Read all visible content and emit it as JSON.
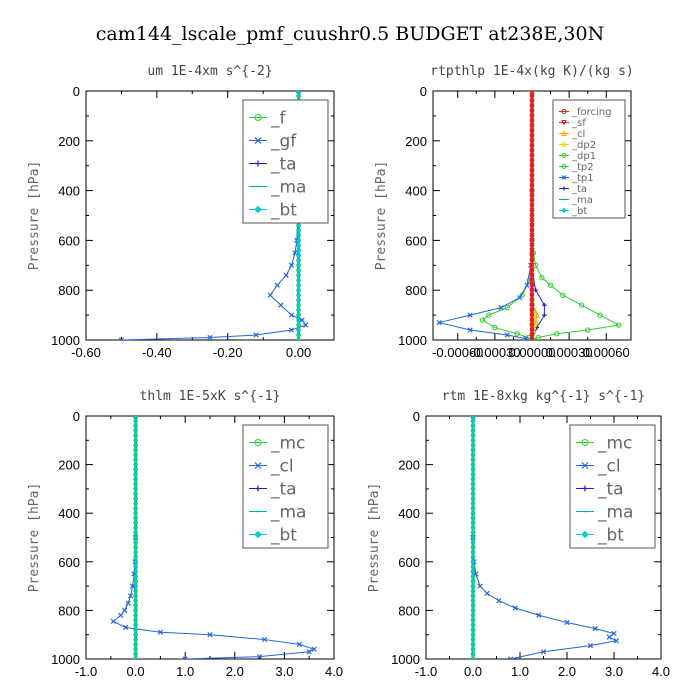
{
  "title": "cam144_lscale_pmf_cuushr0.5  BUDGET at238E,30N",
  "colors": {
    "green": "#33cc33",
    "red": "#dd2222",
    "blue": "#2266dd",
    "cyan": "#00cccc",
    "orange": "#ffaa00",
    "yellow": "#dddd00",
    "darkblue": "#2222cc",
    "axis": "#000000"
  },
  "chart_data": [
    {
      "type": "line",
      "title": "um   1E-4xm  s^{-2}",
      "ylabel": "Pressure [hPa]",
      "xlabel": "",
      "xlim": [
        -0.6,
        0.1
      ],
      "ylim": [
        1000,
        0
      ],
      "xticks": [
        -0.6,
        -0.4,
        -0.2,
        0.0
      ],
      "xtick_labels": [
        "-0.60",
        "-0.40",
        "-0.20",
        "0.00"
      ],
      "yticks": [
        0,
        200,
        400,
        600,
        800,
        1000
      ],
      "ytick_labels": [
        "0",
        "200",
        "400",
        "600",
        "800",
        "1000"
      ],
      "legend": {
        "position": "top-right",
        "entries": [
          {
            "label": "_f",
            "color": "#33cc33",
            "marker": "o"
          },
          {
            "label": "_gf",
            "color": "#2266dd",
            "marker": "x"
          },
          {
            "label": "_ta",
            "color": "#2222cc",
            "marker": "+"
          },
          {
            "label": "_ma",
            "color": "#00aaaa",
            "marker": "-"
          },
          {
            "label": "_bt",
            "color": "#00cccc",
            "marker": "D"
          }
        ]
      },
      "series": [
        {
          "name": "_f",
          "color": "#33cc33",
          "x": [
            0.0,
            0.0,
            0.0,
            0.0,
            0.0,
            0.0,
            0.0,
            0.0,
            0.0,
            0.0,
            0.0
          ],
          "y": [
            0,
            100,
            200,
            300,
            400,
            500,
            600,
            700,
            800,
            900,
            1000
          ]
        },
        {
          "name": "_gf",
          "color": "#2266dd",
          "x": [
            0.0,
            0.0,
            0.0,
            -0.002,
            -0.005,
            -0.01,
            -0.02,
            -0.035,
            -0.06,
            -0.08,
            -0.05,
            -0.02,
            0.01,
            0.02,
            -0.02,
            -0.12,
            -0.25,
            -0.5
          ],
          "y": [
            0,
            200,
            400,
            500,
            600,
            650,
            700,
            740,
            780,
            820,
            860,
            900,
            920,
            940,
            960,
            980,
            990,
            1000
          ]
        },
        {
          "name": "_ta",
          "color": "#2222cc",
          "x": [
            0.0,
            0.0,
            0.0,
            0.0,
            0.0,
            0.0
          ],
          "y": [
            0,
            200,
            400,
            600,
            800,
            1000
          ]
        },
        {
          "name": "_ma",
          "color": "#00aaaa",
          "x": [
            0.0,
            0.0,
            0.0,
            0.0,
            0.0,
            0.0
          ],
          "y": [
            0,
            200,
            400,
            600,
            800,
            1000
          ]
        },
        {
          "name": "_bt",
          "color": "#00cccc",
          "x": [
            0.0,
            0.0,
            0.0,
            0.0,
            0.0,
            0.0
          ],
          "y": [
            0,
            200,
            400,
            600,
            800,
            1000
          ]
        }
      ]
    },
    {
      "type": "line",
      "title": "rtpthlp   1E-4x(kg K)/(kg s)",
      "ylabel": "Pressure [hPa]",
      "xlabel": "",
      "xlim": [
        -0.0008,
        0.0008
      ],
      "ylim": [
        1000,
        0
      ],
      "xticks": [
        -0.0006,
        -0.0003,
        0.0,
        0.0003,
        0.0006
      ],
      "xtick_labels": [
        "-0.00060",
        "-0.00030",
        "0.00000",
        "0.00030",
        "0.00060"
      ],
      "yticks": [
        0,
        200,
        400,
        600,
        800,
        1000
      ],
      "ytick_labels": [
        "0",
        "200",
        "400",
        "600",
        "800",
        "1000"
      ],
      "legend": {
        "position": "top-right",
        "entries": [
          {
            "label": "_forcing",
            "color": "#dd2222",
            "marker": "o"
          },
          {
            "label": "_sf",
            "color": "#dd2222",
            "marker": "v"
          },
          {
            "label": "_cl",
            "color": "#ffaa00",
            "marker": "^"
          },
          {
            "label": "_dp2",
            "color": "#dddd00",
            "marker": "o"
          },
          {
            "label": "_dp1",
            "color": "#33cc33",
            "marker": "o"
          },
          {
            "label": "_tp2",
            "color": "#33cc33",
            "marker": "o"
          },
          {
            "label": "_tp1",
            "color": "#2266dd",
            "marker": "x"
          },
          {
            "label": "_ta",
            "color": "#2222cc",
            "marker": "+"
          },
          {
            "label": "_ma",
            "color": "#00aaaa",
            "marker": "-"
          },
          {
            "label": "_bt",
            "color": "#00cccc",
            "marker": "D"
          }
        ]
      },
      "series": [
        {
          "name": "_dp1",
          "color": "#33cc33",
          "x": [
            0.0,
            0.0,
            0.0,
            1e-05,
            3e-05,
            8e-05,
            0.00015,
            0.00025,
            0.0004,
            0.00055,
            0.0007,
            0.00045,
            0.0002,
            5e-05,
            0.0
          ],
          "y": [
            0,
            400,
            600,
            650,
            700,
            750,
            780,
            820,
            860,
            900,
            940,
            960,
            975,
            990,
            1000
          ]
        },
        {
          "name": "_tp2",
          "color": "#33cc33",
          "x": [
            0.0,
            0.0,
            -2e-05,
            -8e-05,
            -0.0002,
            -0.00035,
            -0.0004,
            -0.0003,
            -0.00012,
            -3e-05,
            0.0
          ],
          "y": [
            0,
            650,
            760,
            820,
            870,
            900,
            920,
            950,
            975,
            990,
            1000
          ]
        },
        {
          "name": "_tp1",
          "color": "#2266dd",
          "x": [
            0.0,
            -1e-05,
            -4e-05,
            -0.0001,
            -0.00025,
            -0.0005,
            -0.00075,
            -0.0005,
            -0.0002,
            -5e-05,
            0.0
          ],
          "y": [
            0,
            700,
            780,
            830,
            870,
            900,
            930,
            960,
            980,
            995,
            1000
          ]
        },
        {
          "name": "_ta",
          "color": "#2222cc",
          "x": [
            0.0,
            0.0,
            3e-05,
            0.0001,
            0.0001,
            4e-05,
            0.0
          ],
          "y": [
            0,
            720,
            800,
            860,
            900,
            950,
            1000
          ]
        },
        {
          "name": "_cl",
          "color": "#ffaa00",
          "x": [
            0.0,
            0.0,
            2e-05,
            4e-05,
            3e-05,
            1e-05,
            0.0
          ],
          "y": [
            0,
            850,
            880,
            900,
            930,
            960,
            1000
          ]
        },
        {
          "name": "_dp2",
          "color": "#dddd00",
          "x": [
            0.0,
            0.0,
            1e-05,
            2e-05,
            1e-05,
            0.0
          ],
          "y": [
            0,
            880,
            910,
            940,
            970,
            1000
          ]
        },
        {
          "name": "_ma",
          "color": "#00aaaa",
          "x": [
            0.0,
            0.0,
            0.0,
            0.0
          ],
          "y": [
            0,
            400,
            800,
            1000
          ]
        },
        {
          "name": "_bt",
          "color": "#00cccc",
          "x": [
            0.0,
            0.0,
            0.0,
            0.0
          ],
          "y": [
            0,
            400,
            800,
            1000
          ]
        },
        {
          "name": "_sf",
          "color": "#dd2222",
          "x": [
            0.0,
            0.0,
            0.0,
            0.0,
            0.0,
            0.0,
            0.0,
            0.0,
            0.0,
            0.0,
            0.0
          ],
          "y": [
            0,
            100,
            200,
            300,
            400,
            500,
            600,
            700,
            800,
            900,
            1000
          ]
        },
        {
          "name": "_forcing",
          "color": "#dd2222",
          "x": [
            0.0,
            0.0,
            0.0,
            0.0,
            0.0,
            0.0,
            0.0,
            0.0,
            0.0,
            0.0,
            0.0
          ],
          "y": [
            0,
            100,
            200,
            300,
            400,
            500,
            600,
            700,
            800,
            900,
            1000
          ]
        }
      ]
    },
    {
      "type": "line",
      "title": "thlm   1E-5xK  s^{-1}",
      "ylabel": "Pressure [hPa]",
      "xlabel": "",
      "xlim": [
        -1.0,
        4.0
      ],
      "ylim": [
        1000,
        0
      ],
      "xticks": [
        -1.0,
        0.0,
        1.0,
        2.0,
        3.0,
        4.0
      ],
      "xtick_labels": [
        "-1.0",
        "0.0",
        "1.0",
        "2.0",
        "3.0",
        "4.0"
      ],
      "yticks": [
        0,
        200,
        400,
        600,
        800,
        1000
      ],
      "ytick_labels": [
        "0",
        "200",
        "400",
        "600",
        "800",
        "1000"
      ],
      "legend": {
        "position": "top-right",
        "entries": [
          {
            "label": "_mc",
            "color": "#33cc33",
            "marker": "o"
          },
          {
            "label": "_cl",
            "color": "#2266dd",
            "marker": "x"
          },
          {
            "label": "_ta",
            "color": "#2222cc",
            "marker": "+"
          },
          {
            "label": "_ma",
            "color": "#00aaaa",
            "marker": "-"
          },
          {
            "label": "_bt",
            "color": "#00cccc",
            "marker": "D"
          }
        ]
      },
      "series": [
        {
          "name": "_mc",
          "color": "#33cc33",
          "x": [
            0.0,
            0.0,
            0.0,
            0.0,
            0.0,
            0.0,
            0.0,
            0.0,
            0.0,
            0.0,
            0.0
          ],
          "y": [
            0,
            100,
            200,
            300,
            400,
            500,
            600,
            700,
            800,
            900,
            1000
          ]
        },
        {
          "name": "_cl",
          "color": "#2266dd",
          "x": [
            0.0,
            0.0,
            -0.01,
            -0.03,
            -0.06,
            -0.1,
            -0.15,
            -0.22,
            -0.3,
            -0.45,
            -0.2,
            0.5,
            1.5,
            2.6,
            3.3,
            3.6,
            3.5,
            2.5,
            1.0
          ],
          "y": [
            0,
            500,
            600,
            650,
            700,
            740,
            770,
            800,
            820,
            845,
            870,
            890,
            900,
            920,
            940,
            960,
            970,
            990,
            1000
          ]
        },
        {
          "name": "_ta",
          "color": "#2222cc",
          "x": [
            0.0,
            0.0,
            0.0,
            0.0,
            0.0,
            0.0
          ],
          "y": [
            0,
            200,
            400,
            600,
            800,
            1000
          ]
        },
        {
          "name": "_ma",
          "color": "#00aaaa",
          "x": [
            0.0,
            0.0,
            0.0,
            0.0,
            0.0,
            0.0
          ],
          "y": [
            0,
            200,
            400,
            600,
            800,
            1000
          ]
        },
        {
          "name": "_bt",
          "color": "#00cccc",
          "x": [
            0.0,
            0.0,
            0.0,
            0.0,
            0.0,
            0.0
          ],
          "y": [
            0,
            200,
            400,
            600,
            800,
            1000
          ]
        }
      ]
    },
    {
      "type": "line",
      "title": "rtm   1E-8xkg  kg^{-1}  s^{-1}",
      "ylabel": "Pressure [hPa]",
      "xlabel": "",
      "xlim": [
        -1.0,
        4.0
      ],
      "ylim": [
        1000,
        0
      ],
      "xticks": [
        -1.0,
        0.0,
        1.0,
        2.0,
        3.0,
        4.0
      ],
      "xtick_labels": [
        "-1.0",
        "0.0",
        "1.0",
        "2.0",
        "3.0",
        "4.0"
      ],
      "yticks": [
        0,
        200,
        400,
        600,
        800,
        1000
      ],
      "ytick_labels": [
        "0",
        "200",
        "400",
        "600",
        "800",
        "1000"
      ],
      "legend": {
        "position": "top-right",
        "entries": [
          {
            "label": "_mc",
            "color": "#33cc33",
            "marker": "o"
          },
          {
            "label": "_cl",
            "color": "#2266dd",
            "marker": "x"
          },
          {
            "label": "_ta",
            "color": "#2222cc",
            "marker": "+"
          },
          {
            "label": "_ma",
            "color": "#00aaaa",
            "marker": "-"
          },
          {
            "label": "_bt",
            "color": "#00cccc",
            "marker": "D"
          }
        ]
      },
      "series": [
        {
          "name": "_mc",
          "color": "#33cc33",
          "x": [
            0.0,
            0.0,
            0.0,
            0.0,
            0.0,
            0.0,
            0.0,
            0.0,
            0.0,
            0.0,
            0.0
          ],
          "y": [
            0,
            100,
            200,
            300,
            400,
            500,
            600,
            700,
            800,
            900,
            1000
          ]
        },
        {
          "name": "_cl",
          "color": "#2266dd",
          "x": [
            0.0,
            0.0,
            0.02,
            0.06,
            0.15,
            0.3,
            0.55,
            0.9,
            1.4,
            2.0,
            2.6,
            3.0,
            2.9,
            3.05,
            2.5,
            1.5,
            0.8
          ],
          "y": [
            0,
            500,
            600,
            650,
            700,
            730,
            760,
            790,
            820,
            850,
            875,
            895,
            910,
            925,
            945,
            970,
            1000
          ]
        },
        {
          "name": "_ta",
          "color": "#2222cc",
          "x": [
            0.0,
            0.0,
            0.0,
            0.0,
            0.0,
            0.0
          ],
          "y": [
            0,
            200,
            400,
            600,
            800,
            1000
          ]
        },
        {
          "name": "_ma",
          "color": "#00aaaa",
          "x": [
            0.0,
            0.0,
            0.0,
            0.0,
            0.0,
            0.0
          ],
          "y": [
            0,
            200,
            400,
            600,
            800,
            1000
          ]
        },
        {
          "name": "_bt",
          "color": "#00cccc",
          "x": [
            0.0,
            0.0,
            0.0,
            0.0,
            0.0,
            0.0
          ],
          "y": [
            0,
            200,
            400,
            600,
            800,
            1000
          ]
        }
      ]
    }
  ]
}
